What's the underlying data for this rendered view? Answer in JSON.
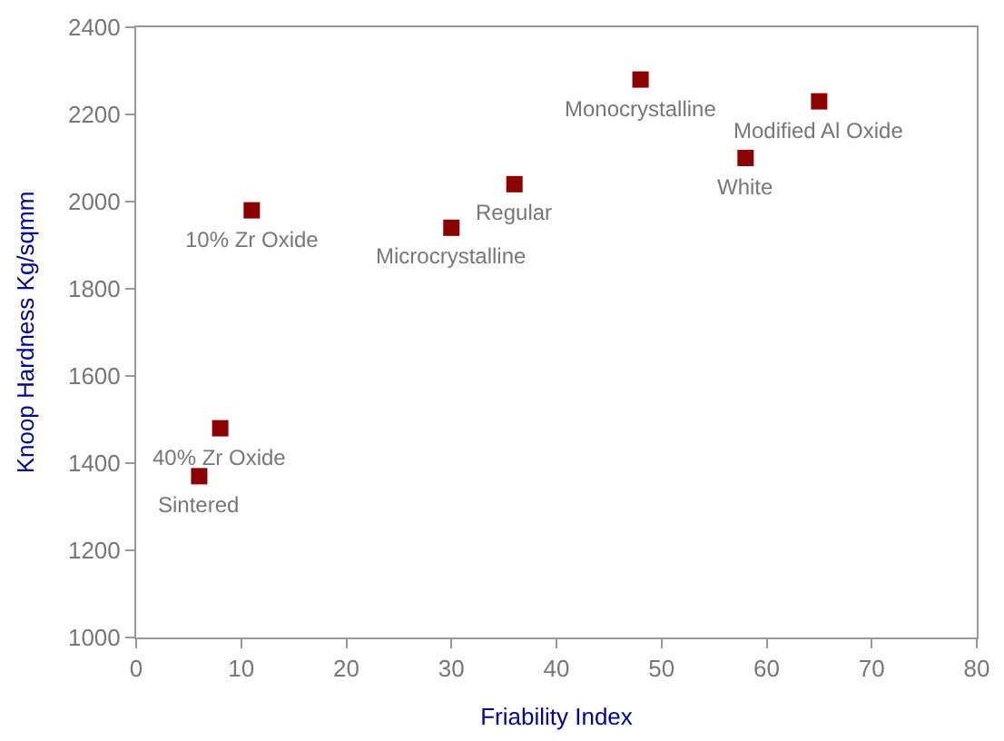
{
  "chart_data": {
    "type": "scatter",
    "xlabel": "Friability Index",
    "ylabel": "Knoop Hardness Kg/sqmm",
    "x": [
      11,
      8,
      6,
      30,
      36,
      48,
      58,
      65
    ],
    "series": [
      {
        "color": "#8b0000",
        "values": [
          1980,
          1480,
          1370,
          1940,
          2040,
          2280,
          2100,
          2230
        ]
      }
    ],
    "marker": "square",
    "xlim": [
      0,
      80
    ],
    "xticks": [
      0,
      10,
      20,
      30,
      40,
      50,
      60,
      70,
      80
    ],
    "ylim": [
      1000,
      2400
    ],
    "yticks": [
      1000,
      1200,
      1400,
      1600,
      1800,
      2000,
      2200,
      2400
    ],
    "annotations": [
      {
        "text": "10% Zr Oxide",
        "x": 11,
        "y": 1980
      },
      {
        "text": "40% Zr Oxide",
        "x": 8,
        "y": 1480
      },
      {
        "text": "Sintered",
        "x": 6,
        "y": 1370
      },
      {
        "text": "Microcrystalline",
        "x": 30,
        "y": 1940
      },
      {
        "text": "Regular",
        "x": 36,
        "y": 2040
      },
      {
        "text": "Monocrystalline",
        "x": 48,
        "y": 2280
      },
      {
        "text": "White",
        "x": 58,
        "y": 2100
      },
      {
        "text": "Modified Al Oxide",
        "x": 65,
        "y": 2230
      }
    ]
  }
}
